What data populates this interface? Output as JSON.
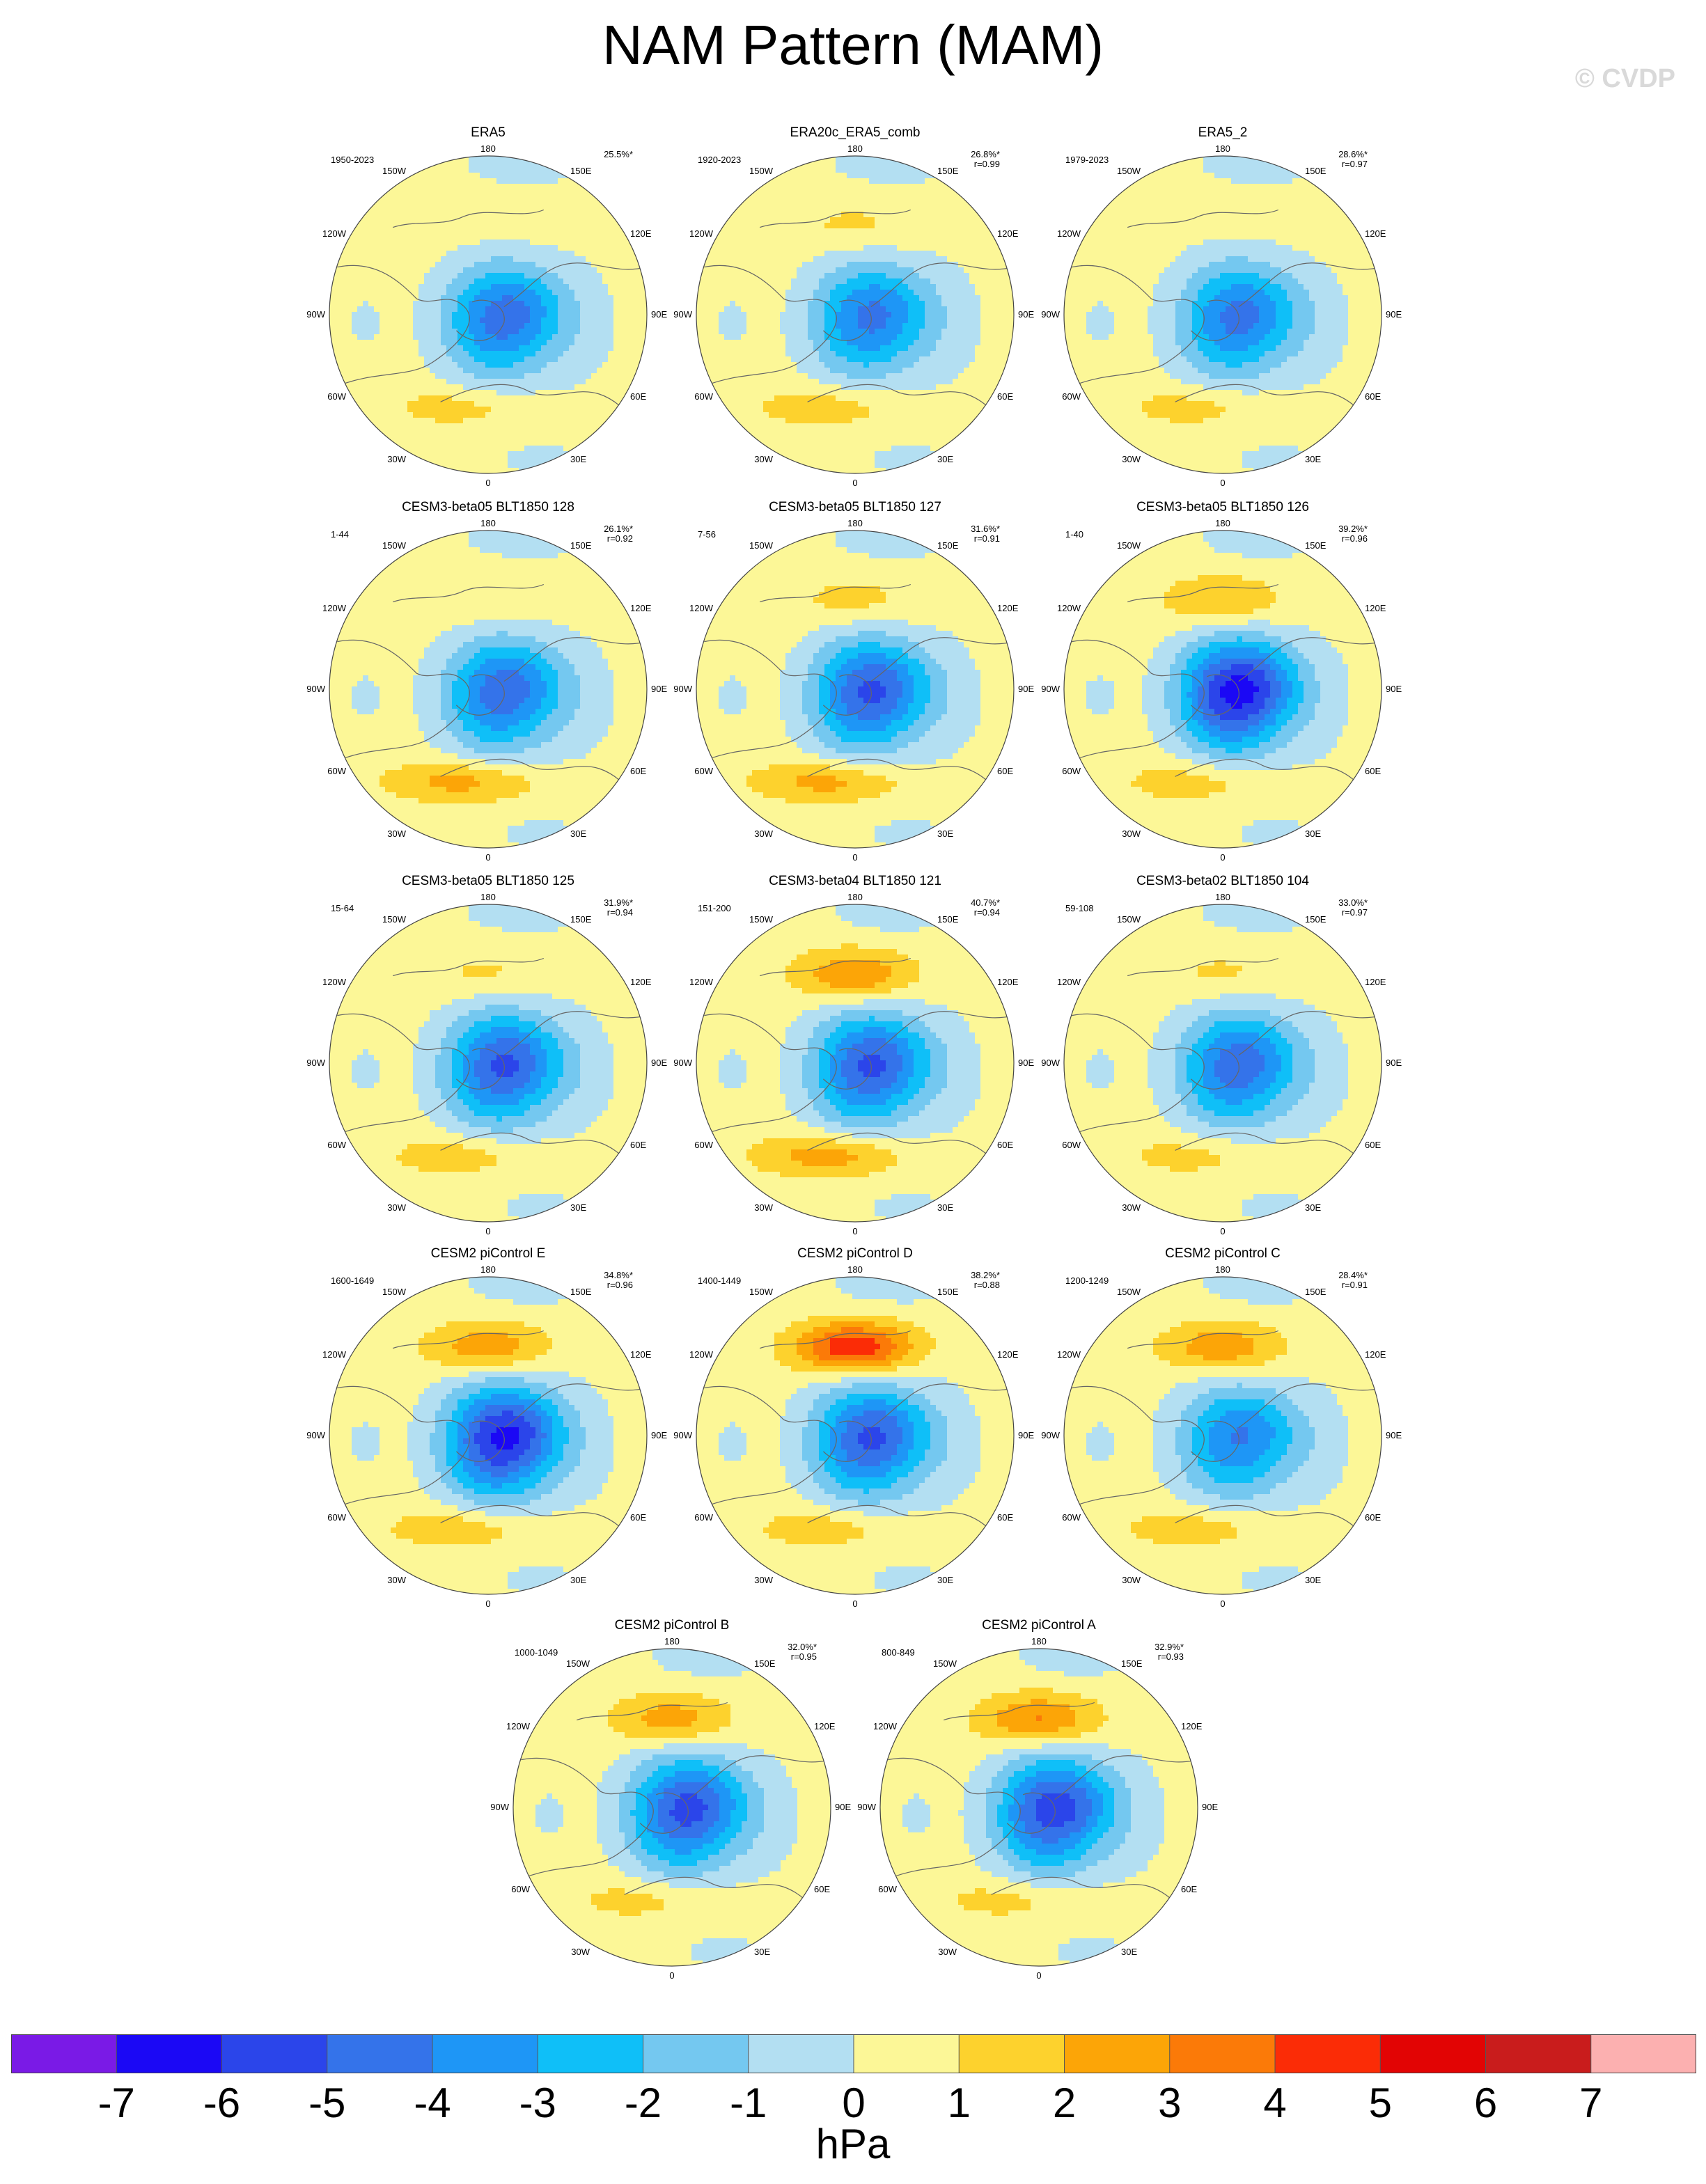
{
  "title": "NAM Pattern (MAM)",
  "watermark": "© CVDP",
  "colorbar": {
    "units": "hPa",
    "labels": [
      "-7",
      "-6",
      "-5",
      "-4",
      "-3",
      "-2",
      "-1",
      "0",
      "1",
      "2",
      "3",
      "4",
      "5",
      "6",
      "7"
    ],
    "colors": [
      "#7a1ae6",
      "#1b08f5",
      "#2b45ea",
      "#3473ea",
      "#1e96f6",
      "#0fbff8",
      "#74c8f0",
      "#b3dff2",
      "#fcf797",
      "#fdd22d",
      "#fca507",
      "#fb7a08",
      "#fb2c06",
      "#e20404",
      "#c91c1c",
      "#fcb0b0"
    ]
  },
  "map_labels": {
    "top": "180",
    "bottom": "0",
    "left": "90W",
    "right": "90E",
    "upper_left_1": "150W",
    "upper_left_2": "120W",
    "upper_right_1": "150E",
    "upper_right_2": "120E",
    "lower_left_1": "60W",
    "lower_left_2": "30W",
    "lower_right_1": "60E",
    "lower_right_2": "30E"
  },
  "chart_data": {
    "type": "polar contour map panels",
    "field": "NAM sea level pressure anomaly pattern",
    "contour_levels_hPa": [
      -7,
      -6,
      -5,
      -4,
      -3,
      -2,
      -1,
      0,
      1,
      2,
      3,
      4,
      5,
      6,
      7
    ],
    "panels": [
      {
        "name": "ERA5",
        "years": "1950-2023",
        "pct": "25.5%*",
        "r": "",
        "arctic_min": -4.5,
        "pacific_max": 0.8,
        "atlantic_max": 1.6
      },
      {
        "name": "ERA20c_ERA5_comb",
        "years": "1920-2023",
        "pct": "26.8%*",
        "r": "r=0.99",
        "arctic_min": -4.2,
        "pacific_max": 1.4,
        "atlantic_max": 1.8
      },
      {
        "name": "ERA5_2",
        "years": "1979-2023",
        "pct": "28.6%*",
        "r": "r=0.97",
        "arctic_min": -4.3,
        "pacific_max": 0.6,
        "atlantic_max": 1.6
      },
      {
        "name": "CESM3-beta05 BLT1850 128",
        "years": "1-44",
        "pct": "26.1%*",
        "r": "r=0.92",
        "arctic_min": -4.6,
        "pacific_max": 1.2,
        "atlantic_max": 2.6
      },
      {
        "name": "CESM3-beta05 BLT1850 127",
        "years": "7-56",
        "pct": "31.6%*",
        "r": "r=0.91",
        "arctic_min": -5.0,
        "pacific_max": 1.6,
        "atlantic_max": 2.6
      },
      {
        "name": "CESM3-beta05 BLT1850 126",
        "years": "1-40",
        "pct": "39.2%*",
        "r": "r=0.96",
        "arctic_min": -6.2,
        "pacific_max": 2.4,
        "atlantic_max": 1.8
      },
      {
        "name": "CESM3-beta05 BLT1850 125",
        "years": "15-64",
        "pct": "31.9%*",
        "r": "r=0.94",
        "arctic_min": -5.0,
        "pacific_max": 1.4,
        "atlantic_max": 1.8
      },
      {
        "name": "CESM3-beta04 BLT1850 121",
        "years": "151-200",
        "pct": "40.7%*",
        "r": "r=0.94",
        "arctic_min": -5.0,
        "pacific_max": 3.2,
        "atlantic_max": 2.8
      },
      {
        "name": "CESM3-beta02 BLT1850 104",
        "years": "59-108",
        "pct": "33.0%*",
        "r": "r=0.97",
        "arctic_min": -4.6,
        "pacific_max": 1.4,
        "atlantic_max": 1.6
      },
      {
        "name": "CESM2 piControl E",
        "years": "1600-1649",
        "pct": "34.8%*",
        "r": "r=0.96",
        "arctic_min": -6.0,
        "pacific_max": 3.0,
        "atlantic_max": 2.0
      },
      {
        "name": "CESM2 piControl D",
        "years": "1400-1449",
        "pct": "38.2%*",
        "r": "r=0.88",
        "arctic_min": -5.0,
        "pacific_max": 5.2,
        "atlantic_max": 1.8
      },
      {
        "name": "CESM2 piControl C",
        "years": "1200-1249",
        "pct": "28.4%*",
        "r": "r=0.91",
        "arctic_min": -4.0,
        "pacific_max": 3.0,
        "atlantic_max": 1.8
      },
      {
        "name": "CESM2 piControl B",
        "years": "1000-1049",
        "pct": "32.0%*",
        "r": "r=0.95",
        "arctic_min": -5.2,
        "pacific_max": 2.8,
        "atlantic_max": 1.6
      },
      {
        "name": "CESM2 piControl A",
        "years": "800-849",
        "pct": "32.9%*",
        "r": "r=0.93",
        "arctic_min": -5.4,
        "pacific_max": 3.4,
        "atlantic_max": 1.6
      }
    ]
  }
}
